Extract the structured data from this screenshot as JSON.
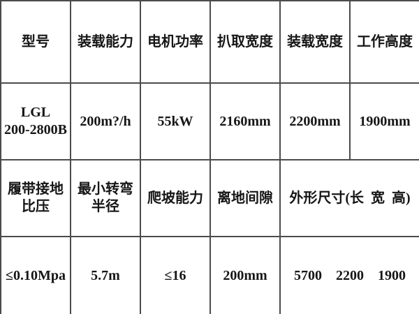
{
  "page": {
    "background_color": "#ffffff",
    "border_color": "#4b4b4b",
    "text_color": "#161616"
  },
  "spec_table": {
    "row1_headers": [
      "型号",
      "装载能力",
      "电机功率",
      "扒取宽度",
      "装载宽度",
      "工作高度"
    ],
    "row2_values": [
      "LGL\n200-2800B",
      "200m?/h",
      "55kW",
      "2160mm",
      "2200mm",
      "1900mm"
    ],
    "row3_headers": [
      "履带接地比压",
      "最小转弯半径",
      "爬坡能力",
      "离地间隙",
      "外形尺寸(长  宽  高)"
    ],
    "row4_values": [
      "≤0.10Mpa",
      "5.7m",
      "≤16",
      "200mm",
      "5700    2200    1900"
    ]
  }
}
